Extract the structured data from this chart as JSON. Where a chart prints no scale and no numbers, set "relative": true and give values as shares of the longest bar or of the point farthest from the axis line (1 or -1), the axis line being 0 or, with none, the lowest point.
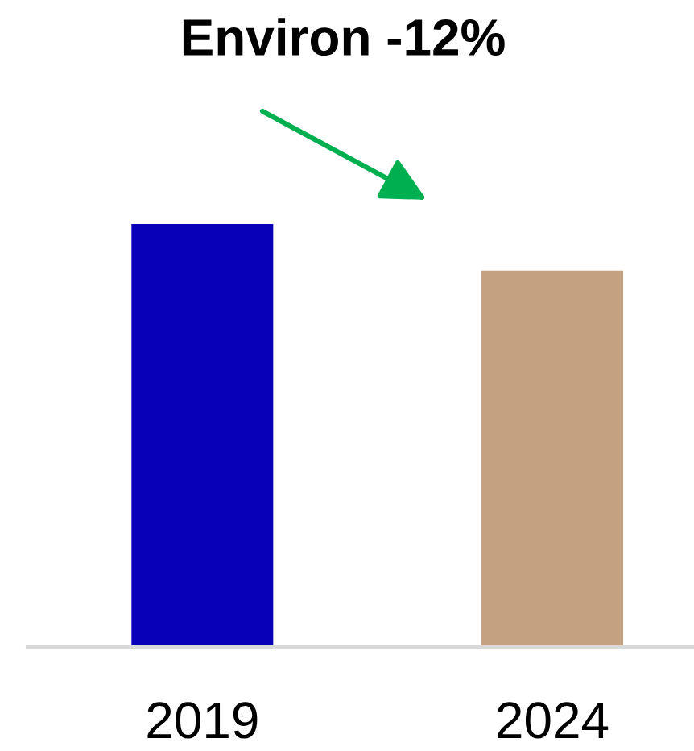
{
  "chart_data": {
    "type": "bar",
    "title": "Environ -12%",
    "categories": [
      "2019",
      "2024"
    ],
    "values": [
      1,
      0.89
    ],
    "colors": [
      "#0700b8",
      "#c4a27f"
    ],
    "relative": true
  }
}
